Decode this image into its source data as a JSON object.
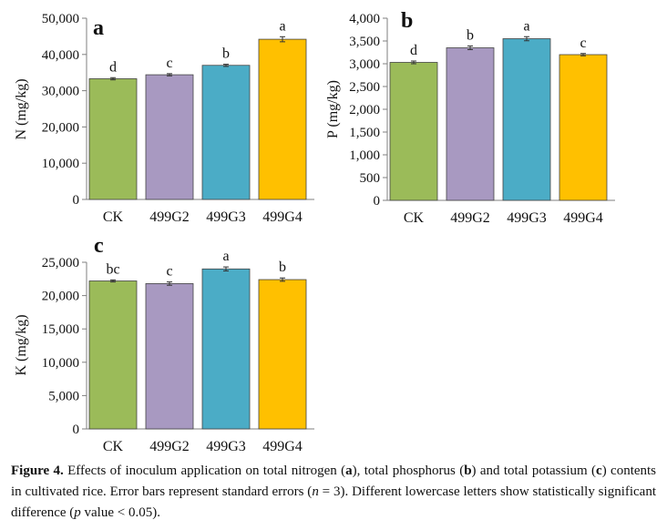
{
  "colors": {
    "CK": "#9BBB59",
    "499G2": "#A899C1",
    "499G3": "#4BACC6",
    "499G4": "#FFC000",
    "axis": "#7f7f7f",
    "text": "#111111"
  },
  "chart_data": [
    {
      "type": "bar",
      "panel_label": "a",
      "ylabel": "N (mg/kg)",
      "categories": [
        "CK",
        "499G2",
        "499G3",
        "499G4"
      ],
      "values": [
        33300,
        34400,
        37000,
        44200
      ],
      "errors": [
        300,
        300,
        300,
        700
      ],
      "letters": [
        "d",
        "c",
        "b",
        "a"
      ],
      "ylim": [
        0,
        50000
      ],
      "yticks": [
        0,
        10000,
        20000,
        30000,
        40000,
        50000
      ],
      "ytick_labels": [
        "0",
        "10,000",
        "20,000",
        "30,000",
        "40,000",
        "50,000"
      ],
      "grid": false
    },
    {
      "type": "bar",
      "panel_label": "b",
      "ylabel": "P (mg/kg)",
      "categories": [
        "CK",
        "499G2",
        "499G3",
        "499G4"
      ],
      "values": [
        3030,
        3350,
        3550,
        3200
      ],
      "errors": [
        30,
        40,
        45,
        25
      ],
      "letters": [
        "d",
        "b",
        "a",
        "c"
      ],
      "ylim": [
        0,
        4000
      ],
      "yticks": [
        0,
        500,
        1000,
        1500,
        2000,
        2500,
        3000,
        3500,
        4000
      ],
      "ytick_labels": [
        "0",
        "500",
        "1,000",
        "1,500",
        "2,000",
        "2,500",
        "3,000",
        "3,500",
        "4,000"
      ],
      "grid": false
    },
    {
      "type": "bar",
      "panel_label": "c",
      "ylabel": "K (mg/kg)",
      "categories": [
        "CK",
        "499G2",
        "499G3",
        "499G4"
      ],
      "values": [
        22200,
        21800,
        24000,
        22400
      ],
      "errors": [
        150,
        250,
        300,
        250
      ],
      "letters": [
        "bc",
        "c",
        "a",
        "b"
      ],
      "ylim": [
        0,
        25000
      ],
      "yticks": [
        0,
        5000,
        10000,
        15000,
        20000,
        25000
      ],
      "ytick_labels": [
        "0",
        "5,000",
        "10,000",
        "15,000",
        "20,000",
        "25,000"
      ],
      "grid": false
    }
  ],
  "caption": {
    "figure_label": "Figure 4.",
    "t1": "  Effects of inoculum application on total nitrogen (",
    "l_a": "a",
    "t2": "), total phosphorus (",
    "l_b": "b",
    "t3": ") and total potassium (",
    "l_c": "c",
    "t4": ") contents in cultivated rice.  Error bars represent standard errors (",
    "n_var": "n",
    "t5": " = 3).  Different lowercase letters show statistically significant difference (",
    "p_var": "p",
    "t6": " value < 0.05)."
  }
}
